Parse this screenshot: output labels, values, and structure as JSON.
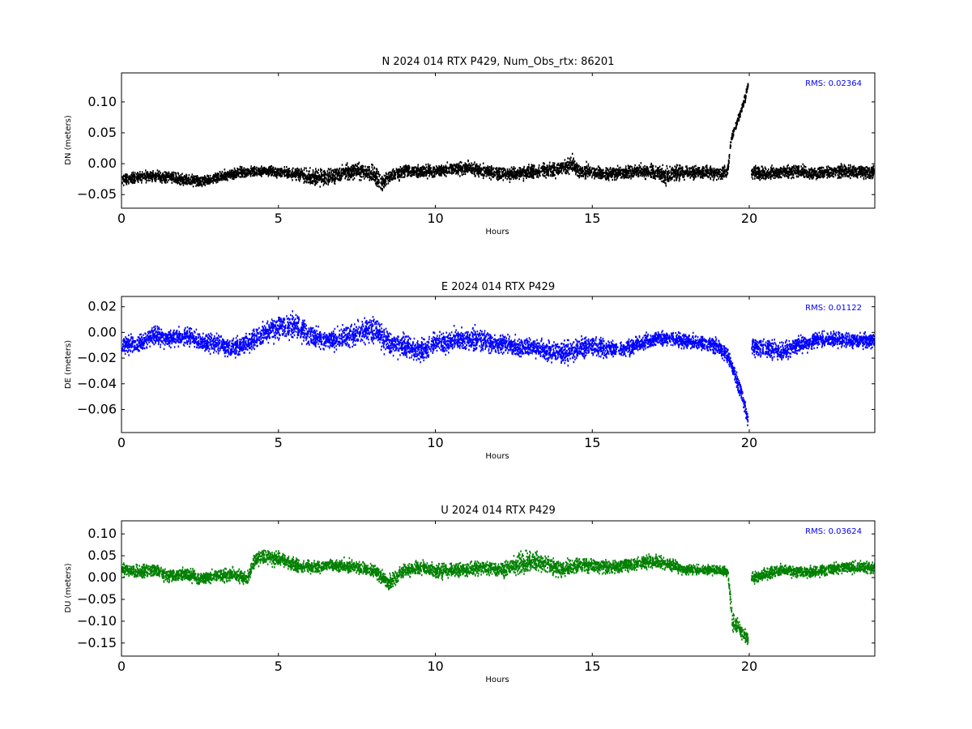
{
  "chart_data": [
    {
      "type": "scatter",
      "title": "N 2024 014 RTX  P429, Num_Obs_rtx: 86201",
      "xlabel": "Hours",
      "ylabel": "DN (meters)",
      "xlim": [
        0,
        24
      ],
      "ylim": [
        -0.072,
        0.147
      ],
      "xticks": [
        "0",
        "5",
        "10",
        "15",
        "20"
      ],
      "yticks": [
        "−0.05",
        "0.00",
        "0.05",
        "0.10"
      ],
      "ytick_values": [
        -0.05,
        0.0,
        0.05,
        0.1
      ],
      "annotation": "RMS:  0.02364",
      "color": "#000000",
      "annotation_color": "#0000ff",
      "series": [
        {
          "x": [
            0,
            0.5,
            1,
            1.5,
            2,
            2.5,
            3,
            3.5,
            4,
            4.5,
            5,
            5.5,
            6,
            6.5,
            7,
            7.5,
            8,
            8.3,
            8.5,
            9,
            9.5,
            10,
            10.5,
            11,
            11.5,
            12,
            12.5,
            13,
            13.5,
            14,
            14.3,
            14.6,
            15,
            15.5,
            16,
            16.5,
            17,
            17.3,
            17.6,
            18,
            18.5,
            19,
            19.3,
            19.4,
            19.6,
            19.8,
            19.95,
            20.05,
            20.5,
            21,
            21.5,
            22,
            22.5,
            23,
            23.5,
            24
          ],
          "y": [
            -0.025,
            -0.02,
            -0.018,
            -0.02,
            -0.025,
            -0.028,
            -0.022,
            -0.015,
            -0.012,
            -0.01,
            -0.012,
            -0.015,
            -0.02,
            -0.02,
            -0.015,
            -0.01,
            -0.015,
            -0.03,
            -0.02,
            -0.01,
            -0.012,
            -0.01,
            -0.008,
            -0.005,
            -0.01,
            -0.015,
            -0.015,
            -0.012,
            -0.01,
            -0.005,
            0.0,
            -0.01,
            -0.012,
            -0.015,
            -0.012,
            -0.01,
            -0.012,
            -0.02,
            -0.015,
            -0.012,
            -0.012,
            -0.015,
            -0.01,
            0.04,
            0.07,
            0.1,
            0.13,
            -0.012,
            -0.015,
            -0.012,
            -0.01,
            -0.015,
            -0.012,
            -0.01,
            -0.012,
            -0.012
          ],
          "spread": [
            0.012,
            0.012,
            0.012,
            0.012,
            0.012,
            0.012,
            0.012,
            0.012,
            0.012,
            0.012,
            0.012,
            0.012,
            0.018,
            0.018,
            0.018,
            0.018,
            0.018,
            0.02,
            0.016,
            0.014,
            0.014,
            0.014,
            0.014,
            0.014,
            0.014,
            0.014,
            0.014,
            0.014,
            0.016,
            0.02,
            0.02,
            0.018,
            0.014,
            0.014,
            0.014,
            0.014,
            0.018,
            0.02,
            0.018,
            0.014,
            0.014,
            0.014,
            0.014,
            0.01,
            0.01,
            0.01,
            0.01,
            0.014,
            0.014,
            0.014,
            0.014,
            0.014,
            0.014,
            0.014,
            0.014,
            0.014
          ]
        }
      ]
    },
    {
      "type": "scatter",
      "title": "E 2024 014 RTX  P429",
      "xlabel": "Hours",
      "ylabel": "DE (meters)",
      "xlim": [
        0,
        24
      ],
      "ylim": [
        -0.078,
        0.028
      ],
      "xticks": [
        "0",
        "5",
        "10",
        "15",
        "20"
      ],
      "yticks": [
        "−0.06",
        "−0.04",
        "−0.02",
        "0.00",
        "0.02"
      ],
      "ytick_values": [
        -0.06,
        -0.04,
        -0.02,
        0.0,
        0.02
      ],
      "annotation": "RMS:  0.01122",
      "color": "#0000ff",
      "annotation_color": "#0000ff",
      "series": [
        {
          "x": [
            0,
            0.5,
            1,
            1.5,
            2,
            2.5,
            3,
            3.5,
            4,
            4.5,
            5,
            5.5,
            6,
            6.5,
            7,
            7.5,
            8,
            8.5,
            9,
            9.5,
            10,
            10.5,
            11,
            11.5,
            12,
            12.5,
            13,
            13.5,
            14,
            14.5,
            15,
            15.5,
            16,
            16.5,
            17,
            17.5,
            18,
            18.5,
            19,
            19.3,
            19.5,
            19.7,
            19.85,
            19.95,
            20.05,
            20.5,
            21,
            21.5,
            22,
            22.5,
            23,
            23.5,
            24
          ],
          "y": [
            -0.01,
            -0.008,
            -0.002,
            -0.004,
            -0.002,
            -0.006,
            -0.008,
            -0.012,
            -0.008,
            0.0,
            0.005,
            0.006,
            -0.002,
            -0.006,
            -0.004,
            0.0,
            0.004,
            -0.008,
            -0.01,
            -0.014,
            -0.008,
            -0.006,
            -0.004,
            -0.006,
            -0.008,
            -0.01,
            -0.01,
            -0.014,
            -0.016,
            -0.012,
            -0.01,
            -0.012,
            -0.012,
            -0.008,
            -0.004,
            -0.004,
            -0.006,
            -0.008,
            -0.01,
            -0.018,
            -0.03,
            -0.045,
            -0.058,
            -0.068,
            -0.01,
            -0.012,
            -0.014,
            -0.01,
            -0.006,
            -0.004,
            -0.005,
            -0.006,
            -0.006
          ],
          "spread": [
            0.01,
            0.01,
            0.01,
            0.01,
            0.01,
            0.01,
            0.01,
            0.01,
            0.01,
            0.012,
            0.014,
            0.014,
            0.012,
            0.01,
            0.012,
            0.012,
            0.014,
            0.012,
            0.012,
            0.012,
            0.012,
            0.012,
            0.012,
            0.012,
            0.01,
            0.01,
            0.01,
            0.01,
            0.012,
            0.012,
            0.01,
            0.01,
            0.008,
            0.008,
            0.008,
            0.008,
            0.008,
            0.008,
            0.008,
            0.008,
            0.008,
            0.008,
            0.008,
            0.008,
            0.01,
            0.01,
            0.01,
            0.01,
            0.008,
            0.008,
            0.008,
            0.008,
            0.008
          ]
        }
      ]
    },
    {
      "type": "scatter",
      "title": "U 2024 014 RTX  P429",
      "xlabel": "Hours",
      "ylabel": "DU (meters)",
      "xlim": [
        0,
        24
      ],
      "ylim": [
        -0.18,
        0.13
      ],
      "xticks": [
        "0",
        "5",
        "10",
        "15",
        "20"
      ],
      "yticks": [
        "−0.15",
        "−0.10",
        "−0.05",
        "0.00",
        "0.05",
        "0.10"
      ],
      "ytick_values": [
        -0.15,
        -0.1,
        -0.05,
        0.0,
        0.05,
        0.1
      ],
      "annotation": "RMS:  0.03624",
      "color": "#008000",
      "annotation_color": "#0000ff",
      "series": [
        {
          "x": [
            0,
            0.5,
            1,
            1.5,
            2,
            2.5,
            3,
            3.5,
            4,
            4.2,
            4.5,
            5,
            5.5,
            6,
            6.5,
            7,
            7.5,
            8,
            8.5,
            9,
            9.5,
            10,
            10.5,
            11,
            11.5,
            12,
            12.5,
            13,
            13.5,
            14,
            14.5,
            15,
            15.5,
            16,
            16.5,
            17,
            17.5,
            18,
            18.5,
            19,
            19.3,
            19.45,
            19.6,
            19.8,
            19.95,
            20.05,
            20.5,
            21,
            21.5,
            22,
            22.5,
            23,
            23.5,
            24
          ],
          "y": [
            0.02,
            0.015,
            0.02,
            0.005,
            0.01,
            0.0,
            0.005,
            0.01,
            0.0,
            0.04,
            0.05,
            0.045,
            0.03,
            0.025,
            0.03,
            0.03,
            0.025,
            0.02,
            -0.01,
            0.02,
            0.025,
            0.015,
            0.02,
            0.02,
            0.025,
            0.02,
            0.03,
            0.04,
            0.035,
            0.02,
            0.03,
            0.03,
            0.025,
            0.03,
            0.035,
            0.04,
            0.03,
            0.02,
            0.02,
            0.02,
            0.015,
            -0.1,
            -0.11,
            -0.13,
            -0.14,
            0.0,
            0.01,
            0.02,
            0.015,
            0.015,
            0.02,
            0.025,
            0.025,
            0.025
          ],
          "spread": [
            0.02,
            0.02,
            0.022,
            0.02,
            0.02,
            0.02,
            0.02,
            0.02,
            0.02,
            0.02,
            0.022,
            0.022,
            0.02,
            0.02,
            0.02,
            0.02,
            0.02,
            0.02,
            0.022,
            0.022,
            0.022,
            0.022,
            0.022,
            0.022,
            0.022,
            0.022,
            0.03,
            0.035,
            0.03,
            0.025,
            0.025,
            0.022,
            0.02,
            0.02,
            0.02,
            0.022,
            0.02,
            0.015,
            0.015,
            0.015,
            0.015,
            0.03,
            0.025,
            0.02,
            0.02,
            0.018,
            0.018,
            0.018,
            0.018,
            0.018,
            0.018,
            0.018,
            0.018,
            0.018
          ]
        }
      ]
    }
  ]
}
